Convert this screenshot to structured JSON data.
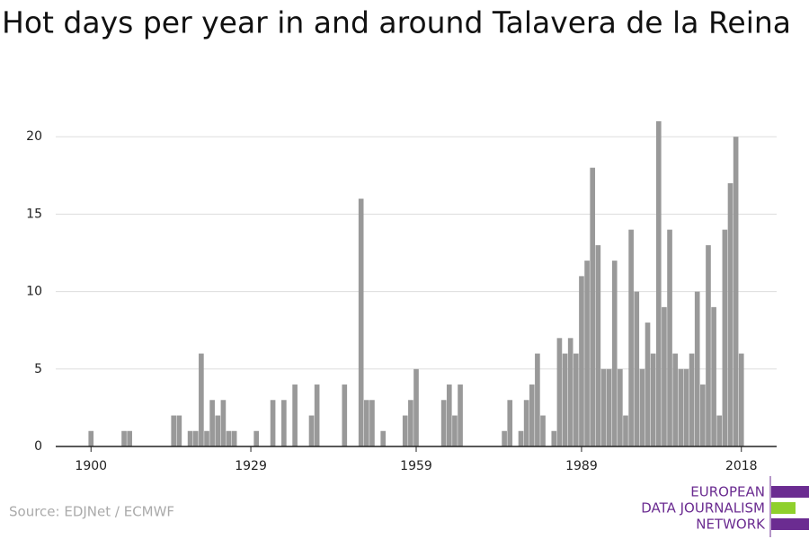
{
  "chart_data": {
    "type": "bar",
    "title": "Hot days per year in and around Talavera de la Reina",
    "source": "Source: EDJNet / ECMWF",
    "logo": [
      "EUROPEAN",
      "DATA JOURNALISM",
      "NETWORK"
    ],
    "color": "#999999",
    "x": [
      1900,
      1901,
      1902,
      1903,
      1904,
      1905,
      1906,
      1907,
      1908,
      1909,
      1910,
      1911,
      1912,
      1913,
      1914,
      1915,
      1916,
      1917,
      1918,
      1919,
      1920,
      1921,
      1922,
      1923,
      1924,
      1925,
      1926,
      1927,
      1928,
      1929,
      1930,
      1931,
      1932,
      1933,
      1934,
      1935,
      1936,
      1937,
      1938,
      1939,
      1940,
      1941,
      1942,
      1943,
      1944,
      1945,
      1946,
      1947,
      1948,
      1949,
      1950,
      1951,
      1952,
      1953,
      1954,
      1955,
      1956,
      1957,
      1958,
      1959,
      1960,
      1961,
      1962,
      1963,
      1964,
      1965,
      1966,
      1967,
      1968,
      1969,
      1970,
      1971,
      1972,
      1973,
      1974,
      1975,
      1976,
      1977,
      1978,
      1979,
      1980,
      1981,
      1982,
      1983,
      1984,
      1985,
      1986,
      1987,
      1988,
      1989,
      1990,
      1991,
      1992,
      1993,
      1994,
      1995,
      1996,
      1997,
      1998,
      1999,
      2000,
      2001,
      2002,
      2003,
      2004,
      2005,
      2006,
      2007,
      2008,
      2009,
      2010,
      2011,
      2012,
      2013,
      2014,
      2015,
      2016,
      2017,
      2018
    ],
    "values": [
      1,
      0,
      0,
      0,
      0,
      0,
      1,
      1,
      0,
      0,
      0,
      0,
      0,
      0,
      0,
      2,
      2,
      0,
      1,
      1,
      6,
      1,
      3,
      2,
      3,
      1,
      1,
      0,
      0,
      0,
      1,
      0,
      0,
      3,
      0,
      3,
      0,
      4,
      0,
      0,
      2,
      4,
      0,
      0,
      0,
      0,
      4,
      0,
      0,
      16,
      3,
      3,
      0,
      1,
      0,
      0,
      0,
      2,
      3,
      5,
      0,
      0,
      0,
      0,
      3,
      4,
      2,
      4,
      0,
      0,
      0,
      0,
      0,
      0,
      0,
      1,
      3,
      0,
      1,
      3,
      4,
      6,
      2,
      0,
      1,
      7,
      6,
      7,
      6,
      11,
      12,
      18,
      13,
      5,
      5,
      12,
      5,
      2,
      14,
      10,
      5,
      8,
      6,
      21,
      9,
      14,
      6,
      5,
      5,
      6,
      10,
      4,
      13,
      9,
      2,
      14,
      17,
      20,
      6
    ],
    "xlim": [
      1893.6,
      2024.4
    ],
    "xticks": [
      1900,
      1929,
      1959,
      1989,
      2018
    ],
    "ylim": [
      0,
      21
    ],
    "yticks": [
      0,
      5,
      10,
      15,
      20
    ],
    "grid": true
  }
}
